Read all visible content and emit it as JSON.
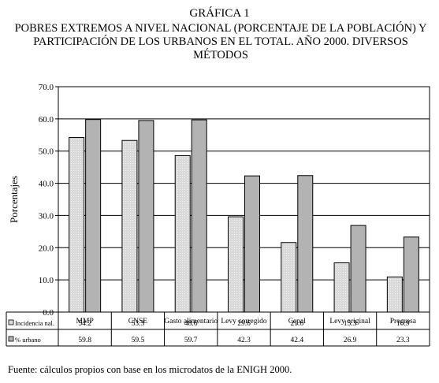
{
  "title_line1": "GRÁFICA 1",
  "title_line2": "POBRES EXTREMOS A NIVEL NACIONAL (PORCENTAJE DE LA POBLACIÓN) Y PARTICIPACIÓN DE LOS URBANOS EN EL TOTAL. AÑO 2000. DIVERSOS MÉTODOS",
  "source": "Fuente: cálculos propios con base en los microdatos de la  ENIGH 2000.",
  "colors": {
    "series1_fill": "#d9d9d9",
    "series2_fill": "#b3b3b3",
    "border": "#000000"
  },
  "chart_data": {
    "type": "bar",
    "ylabel": "Porcentajes",
    "ylim": [
      0,
      70
    ],
    "yticks": [
      "0.0",
      "10.0",
      "20.0",
      "30.0",
      "40.0",
      "50.0",
      "60.0",
      "70.0"
    ],
    "categories": [
      "MMP",
      "CNSE",
      "Gasto alimentario",
      "Levy corregido",
      "Cepal",
      "Levy original",
      "Progresa"
    ],
    "series": [
      {
        "name": "Incidencia nal.",
        "values": [
          54.2,
          53.3,
          48.6,
          29.6,
          21.6,
          15.3,
          10.9
        ],
        "labels": [
          "54.2",
          "53.3",
          "48.6",
          "29.6",
          "21.6",
          "15.3",
          "10.9"
        ]
      },
      {
        "name": "% urbano",
        "values": [
          59.8,
          59.5,
          59.7,
          42.3,
          42.4,
          26.9,
          23.3
        ],
        "labels": [
          "59.8",
          "59.5",
          "59.7",
          "42.3",
          "42.4",
          "26.9",
          "23.3"
        ]
      }
    ],
    "grid": true,
    "legend": "data-table"
  }
}
